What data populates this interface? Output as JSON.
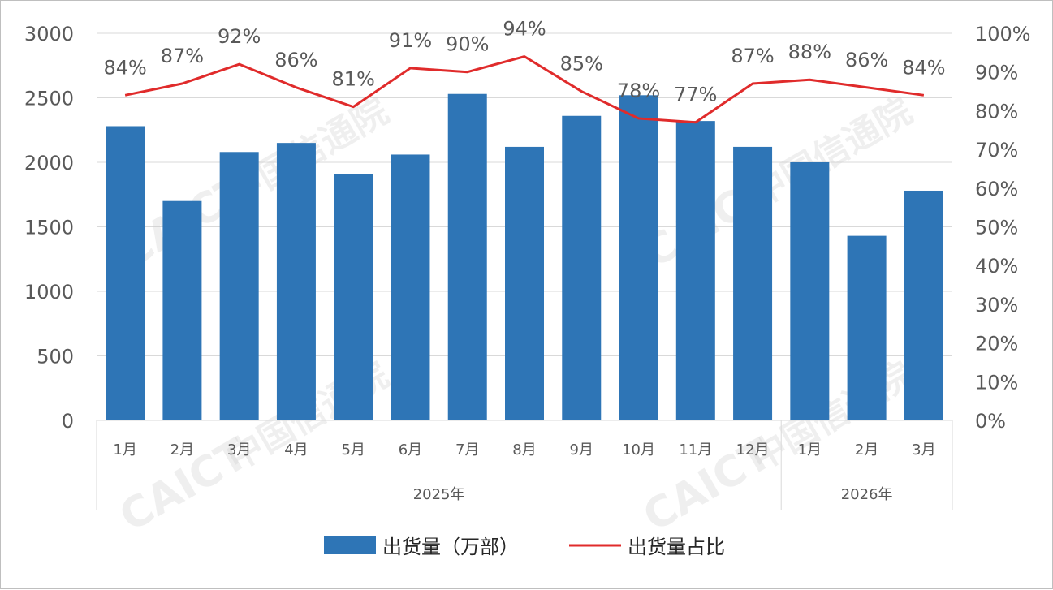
{
  "chart_data": {
    "type": "bar",
    "categories": [
      "1月",
      "2月",
      "3月",
      "4月",
      "5月",
      "6月",
      "7月",
      "8月",
      "9月",
      "10月",
      "11月",
      "12月",
      "1月",
      "2月",
      "3月"
    ],
    "groups": [
      {
        "label": "2025年",
        "count": 12
      },
      {
        "label": "2026年",
        "count": 3
      }
    ],
    "series": [
      {
        "name": "出货量（万部）",
        "type": "bar",
        "axis": "left",
        "color": "#2e75b6",
        "values": [
          2280,
          1700,
          2080,
          2150,
          1910,
          2060,
          2530,
          2120,
          2360,
          2520,
          2320,
          2120,
          2000,
          1430,
          1780
        ]
      },
      {
        "name": "出货量占比",
        "type": "line",
        "axis": "right",
        "color": "#e02b2b",
        "values": [
          84,
          87,
          92,
          86,
          81,
          91,
          90,
          94,
          85,
          78,
          77,
          87,
          88,
          86,
          84
        ],
        "labels": [
          "84%",
          "87%",
          "92%",
          "86%",
          "81%",
          "91%",
          "90%",
          "94%",
          "85%",
          "78%",
          "77%",
          "87%",
          "88%",
          "86%",
          "84%"
        ]
      }
    ],
    "y_left": {
      "min": 0,
      "max": 3000,
      "ticks": [
        "0",
        "500",
        "1000",
        "1500",
        "2000",
        "2500",
        "3000"
      ]
    },
    "y_right": {
      "min": 0,
      "max": 100,
      "ticks": [
        "0%",
        "10%",
        "20%",
        "30%",
        "40%",
        "50%",
        "60%",
        "70%",
        "80%",
        "90%",
        "100%"
      ]
    },
    "grid": true,
    "legend_position": "bottom"
  },
  "watermark": {
    "brand": "CAICT",
    "name": "中国信通院"
  }
}
